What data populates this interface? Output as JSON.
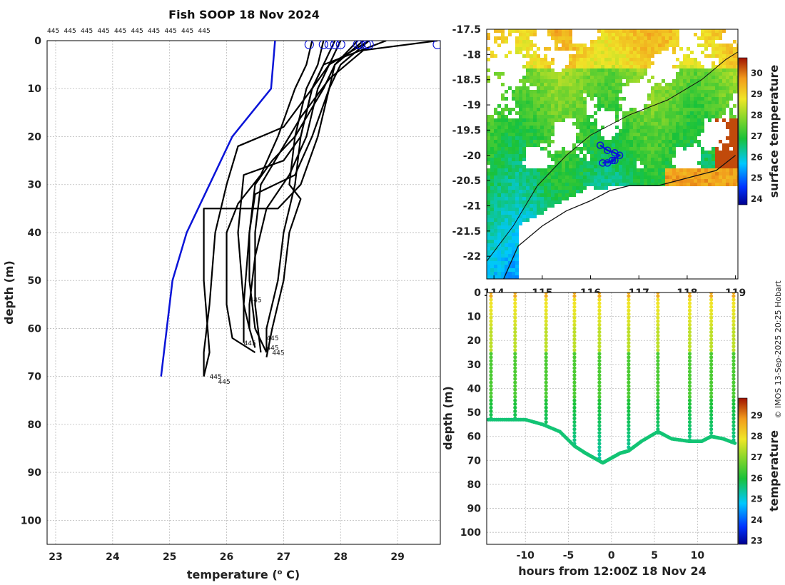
{
  "chart_data": [
    {
      "id": "profile",
      "type": "line",
      "title": "Fish SOOP 18 Nov 2024",
      "xlabel": "temperature (",
      "xlabel_sup": "o",
      "xlabel_tail": " C)",
      "ylabel": "depth (m)",
      "xlim": [
        22.85,
        29.75
      ],
      "ylim": [
        0,
        105
      ],
      "xticks": [
        23,
        24,
        25,
        26,
        27,
        28,
        29
      ],
      "yticks": [
        0,
        10,
        20,
        30,
        40,
        50,
        60,
        70,
        80,
        90,
        100
      ],
      "top_labels": [
        "445",
        "445",
        "445",
        "445",
        "445",
        "445",
        "445",
        "445",
        "445",
        "445"
      ],
      "end_labels": [
        {
          "text": "445",
          "x": 26.4,
          "y": 54.5
        },
        {
          "text": "445",
          "x": 26.7,
          "y": 62.5
        },
        {
          "text": "445",
          "x": 26.3,
          "y": 63.5
        },
        {
          "text": "445",
          "x": 26.7,
          "y": 64.5
        },
        {
          "text": "445",
          "x": 26.8,
          "y": 65.5
        },
        {
          "text": "445",
          "x": 25.7,
          "y": 70.5
        },
        {
          "text": "445",
          "x": 25.85,
          "y": 71.5
        }
      ],
      "reference_series": {
        "name": "climatology",
        "color": "#0a14d8",
        "depth": [
          0,
          10,
          20,
          30,
          40,
          50,
          60,
          70
        ],
        "temp": [
          26.85,
          26.78,
          26.1,
          25.7,
          25.3,
          25.05,
          24.95,
          24.85
        ]
      },
      "surface_markers": [
        27.45,
        27.7,
        27.8,
        27.9,
        28.0,
        28.3,
        28.35,
        28.45,
        28.5,
        29.7
      ],
      "profiles": [
        {
          "temp": [
            28.8,
            27.7,
            27.5,
            27.3,
            27.2,
            27.0,
            26.9,
            26.8,
            26.7,
            26.7
          ],
          "depth": [
            0,
            5,
            10,
            20,
            30,
            40,
            50,
            55,
            60,
            65
          ]
        },
        {
          "temp": [
            28.5,
            27.8,
            27.6,
            27.4,
            27.1,
            26.7,
            26.5,
            26.4,
            26.4,
            26.5
          ],
          "depth": [
            0,
            5,
            10,
            20,
            28,
            35,
            45,
            55,
            60,
            64
          ]
        },
        {
          "temp": [
            28.3,
            27.9,
            27.7,
            27.2,
            26.8,
            26.5,
            26.4,
            26.3,
            26.3
          ],
          "depth": [
            0,
            5,
            10,
            20,
            25,
            30,
            40,
            55,
            63
          ]
        },
        {
          "temp": [
            28.0,
            27.8,
            27.5,
            27.0,
            26.2,
            26.0,
            25.8,
            25.7,
            25.6,
            25.6
          ],
          "depth": [
            0,
            5,
            10,
            18,
            22,
            30,
            40,
            55,
            65,
            70
          ]
        },
        {
          "temp": [
            29.7,
            28.4,
            27.8,
            27.3,
            26.9,
            26.6,
            26.5,
            26.5,
            26.6
          ],
          "depth": [
            0,
            2,
            8,
            16,
            24,
            30,
            40,
            55,
            65
          ]
        },
        {
          "temp": [
            27.5,
            27.4,
            27.2,
            26.9,
            26.6,
            26.2,
            26.0,
            26.0,
            26.1,
            26.5
          ],
          "depth": [
            0,
            5,
            10,
            20,
            28,
            34,
            40,
            55,
            62,
            65
          ]
        },
        {
          "temp": [
            27.7,
            27.6,
            27.4,
            27.2,
            27.1,
            27.3,
            27.1,
            27.0,
            26.8,
            26.7
          ],
          "depth": [
            0,
            5,
            10,
            20,
            30,
            33,
            40,
            50,
            60,
            66
          ]
        },
        {
          "temp": [
            27.9,
            27.7,
            27.5,
            27.3,
            27.0,
            26.3,
            26.2,
            26.3,
            26.4
          ],
          "depth": [
            0,
            5,
            10,
            20,
            25,
            28,
            40,
            55,
            60
          ]
        },
        {
          "temp": [
            28.4,
            27.9,
            27.8,
            27.6,
            27.3,
            26.9,
            25.6,
            25.6,
            25.7,
            25.6
          ],
          "depth": [
            0,
            5,
            10,
            20,
            30,
            35,
            35,
            50,
            65,
            70
          ]
        },
        {
          "temp": [
            28.5,
            28.0,
            27.8,
            27.5,
            27.2,
            26.5,
            26.4,
            26.4,
            26.5,
            26.7
          ],
          "depth": [
            0,
            5,
            10,
            20,
            28,
            32,
            40,
            50,
            60,
            65
          ]
        }
      ]
    },
    {
      "id": "map",
      "type": "heatmap",
      "title": "",
      "xlim": [
        113.85,
        119.05
      ],
      "ylim": [
        -22.45,
        -17.5
      ],
      "xticks": [
        114,
        115,
        116,
        117,
        118,
        119
      ],
      "yticks": [
        -17.5,
        -18,
        -18.5,
        -19,
        -19.5,
        -20,
        -20.5,
        -21,
        -21.5,
        -22
      ],
      "colorbar_label": "surface temperature",
      "colorbar_ticks": [
        24,
        25,
        26,
        27,
        28,
        29,
        30
      ],
      "colorbar_range": [
        23.7,
        30.7
      ],
      "coastline_outer": [
        [
          113.85,
          -22.1
        ],
        [
          114.4,
          -21.4
        ],
        [
          114.9,
          -20.6
        ],
        [
          115.5,
          -20.0
        ],
        [
          116.0,
          -19.6
        ],
        [
          116.8,
          -19.2
        ],
        [
          117.6,
          -18.9
        ],
        [
          118.3,
          -18.5
        ],
        [
          118.8,
          -18.1
        ],
        [
          119.05,
          -17.95
        ]
      ],
      "coastline_inner": [
        [
          114.2,
          -22.45
        ],
        [
          114.5,
          -21.8
        ],
        [
          115.0,
          -21.4
        ],
        [
          115.5,
          -21.1
        ],
        [
          116.0,
          -20.9
        ],
        [
          116.4,
          -20.7
        ],
        [
          116.8,
          -20.6
        ],
        [
          117.4,
          -20.6
        ],
        [
          118.2,
          -20.4
        ],
        [
          118.6,
          -20.3
        ],
        [
          119.0,
          -20.0
        ]
      ],
      "track": [
        [
          116.2,
          -19.8
        ],
        [
          116.35,
          -19.9
        ],
        [
          116.5,
          -19.95
        ],
        [
          116.6,
          -20.0
        ],
        [
          116.45,
          -20.1
        ],
        [
          116.35,
          -20.15
        ],
        [
          116.5,
          -20.1
        ],
        [
          116.25,
          -20.15
        ]
      ]
    },
    {
      "id": "section",
      "type": "scatter",
      "xlabel": "hours from 12:00Z 18 Nov 24",
      "ylabel": "depth (m)",
      "xlim": [
        -14.5,
        14.7
      ],
      "ylim": [
        0,
        105
      ],
      "xticks": [
        -10,
        -5,
        0,
        5,
        10
      ],
      "yticks": [
        0,
        10,
        20,
        30,
        40,
        50,
        60,
        70,
        80,
        90,
        100
      ],
      "colorbar_label": "temperature",
      "colorbar_ticks": [
        23,
        24,
        25,
        26,
        27,
        28,
        29
      ],
      "colorbar_range": [
        22.8,
        29.8
      ],
      "casts": [
        {
          "t": -14.0,
          "bottom": 53
        },
        {
          "t": -11.2,
          "bottom": 53
        },
        {
          "t": -7.6,
          "bottom": 56
        },
        {
          "t": -4.3,
          "bottom": 64
        },
        {
          "t": -1.4,
          "bottom": 70
        },
        {
          "t": 2.0,
          "bottom": 66
        },
        {
          "t": 5.4,
          "bottom": 59
        },
        {
          "t": 9.1,
          "bottom": 62
        },
        {
          "t": 11.6,
          "bottom": 60
        },
        {
          "t": 14.2,
          "bottom": 62
        }
      ],
      "bottom_trace_t": [
        -14.3,
        -12,
        -10,
        -8,
        -6,
        -4.3,
        -3,
        -2,
        -1,
        0,
        1,
        2,
        3.5,
        5.4,
        7,
        9,
        10.5,
        11.6,
        13,
        14.5
      ],
      "bottom_trace_d": [
        53,
        53,
        53,
        55,
        58,
        64,
        67,
        69,
        71,
        69,
        67,
        66,
        62,
        58,
        61,
        62,
        62,
        60,
        61,
        63
      ]
    }
  ],
  "credit": "© IMOS 13-Sep-2025 20:25 Hobart"
}
